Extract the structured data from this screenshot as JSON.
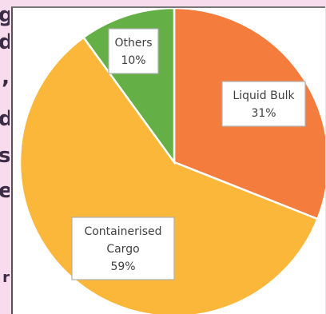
{
  "chart_data": {
    "type": "pie",
    "title": "",
    "slices": [
      {
        "name": "Liquid Bulk",
        "value": 31,
        "label": "31%",
        "color": "#f47c3c"
      },
      {
        "name": "Containerised Cargo",
        "value": 59,
        "label": "59%",
        "color": "#fbb73a"
      },
      {
        "name": "Others",
        "value": 10,
        "label": "10%",
        "color": "#65b046"
      }
    ],
    "start_angle_deg": 0,
    "direction": "clockwise",
    "legend": "none",
    "data_labels": "category and percentage in boxes",
    "slice_border_color": "#ffffff"
  },
  "colors": {
    "background": "#f6dced",
    "panel": "#ffffff",
    "edge_text": "#3a2c45"
  }
}
